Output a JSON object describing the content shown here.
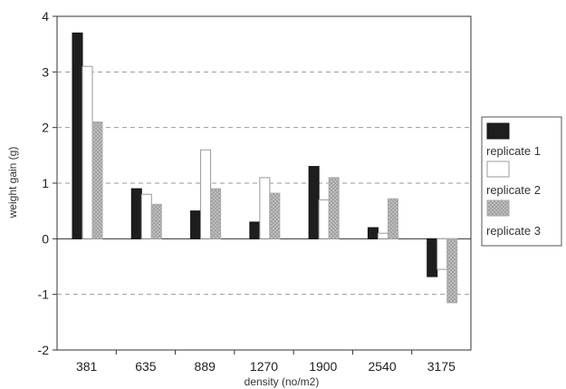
{
  "chart_data": {
    "type": "bar",
    "title": "",
    "xlabel": "density (no/m2)",
    "ylabel": "weight gain (g)",
    "categories": [
      "381",
      "635",
      "889",
      "1270",
      "1900",
      "2540",
      "3175"
    ],
    "series": [
      {
        "name": "replicate 1",
        "color": "#1e1e1e",
        "pattern": "solid",
        "values": [
          3.7,
          0.9,
          0.5,
          0.3,
          1.3,
          0.2,
          -0.68
        ]
      },
      {
        "name": "replicate 2",
        "color": "#ffffff",
        "pattern": "outline",
        "values": [
          3.1,
          0.8,
          1.6,
          1.1,
          0.7,
          0.1,
          -0.55
        ]
      },
      {
        "name": "replicate 3",
        "color": "#bfbfbf",
        "pattern": "crosshatch",
        "values": [
          2.1,
          0.62,
          0.9,
          0.82,
          1.1,
          0.72,
          -1.15
        ]
      }
    ],
    "ylim": [
      -2,
      4
    ],
    "yticks": [
      "-2",
      "-1",
      "0",
      "1",
      "2",
      "3",
      "4"
    ],
    "grid": "horizontal-dashed",
    "legend_position": "right"
  }
}
